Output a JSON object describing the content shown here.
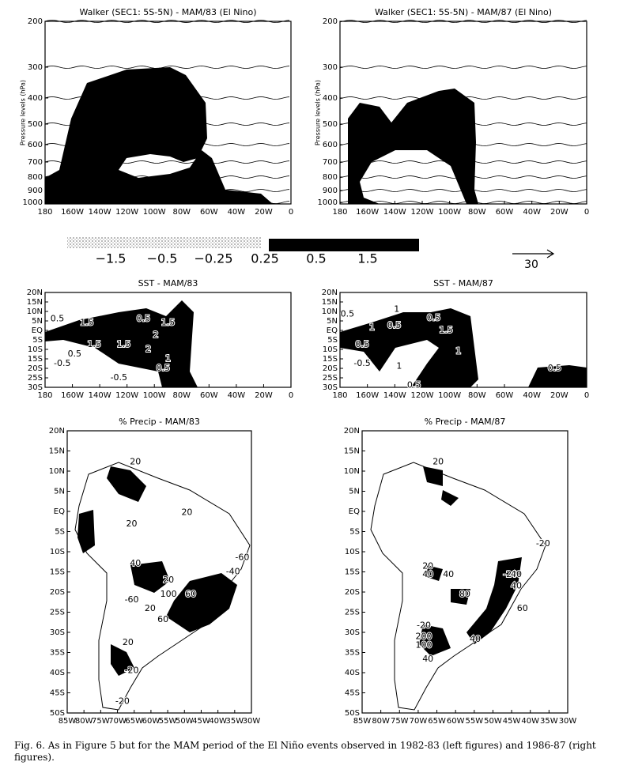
{
  "walker": [
    {
      "title": "Walker (SEC1: 5S-5N) - MAM/83 (El Nino)",
      "y_label": "Pressure levels (hPa)",
      "y_ticks": [
        "200",
        "300",
        "400",
        "500",
        "600",
        "700",
        "800",
        "900",
        "1000"
      ],
      "x_ticks": [
        "180",
        "160W",
        "140W",
        "120W",
        "100W",
        "80W",
        "60W",
        "40W",
        "20W",
        "0"
      ]
    },
    {
      "title": "Walker (SEC1: 5S-5N) - MAM/87 (El Nino)",
      "y_label": "Pressure levels (hPa)",
      "y_ticks": [
        "200",
        "300",
        "400",
        "500",
        "600",
        "700",
        "800",
        "900",
        "1000"
      ],
      "x_ticks": [
        "180",
        "160W",
        "140W",
        "120W",
        "100W",
        "80W",
        "60W",
        "40W",
        "20W",
        "0"
      ]
    }
  ],
  "legend": {
    "labels": [
      "−1.5",
      "−0.5",
      "−0.25",
      "0.25",
      "0.5",
      "1.5"
    ],
    "vector_scale": "30"
  },
  "sst": [
    {
      "title": "SST - MAM/83",
      "y_ticks": [
        "20N",
        "15N",
        "10N",
        "5N",
        "EQ",
        "5S",
        "10S",
        "15S",
        "20S",
        "25S",
        "30S"
      ],
      "x_ticks": [
        "180",
        "160W",
        "140W",
        "120W",
        "100W",
        "80W",
        "60W",
        "40W",
        "20W",
        "0"
      ],
      "contour_labels": [
        "0.5",
        "1.5",
        "0.5",
        "1.5",
        "2",
        "1.5",
        "2",
        "1.5",
        "0.5",
        "-0.5",
        "-0.5",
        "1",
        "0.5"
      ]
    },
    {
      "title": "SST - MAM/87",
      "y_ticks": [
        "20N",
        "15N",
        "10N",
        "5N",
        "EQ",
        "5S",
        "10S",
        "15S",
        "20S",
        "25S",
        "30S"
      ],
      "x_ticks": [
        "180",
        "160W",
        "140W",
        "120W",
        "100W",
        "80W",
        "60W",
        "40W",
        "20W",
        "0"
      ],
      "contour_labels": [
        "0.5",
        "1",
        "0.5",
        "1",
        "0.5",
        "1.5",
        "0.5",
        "1",
        "-0.5",
        "1",
        "0.5",
        "0.5"
      ]
    }
  ],
  "precip": [
    {
      "title": "% Precip - MAM/83",
      "y_ticks": [
        "20N",
        "15N",
        "10N",
        "5N",
        "EQ",
        "5S",
        "10S",
        "15S",
        "20S",
        "25S",
        "30S",
        "35S",
        "40S",
        "45S",
        "50S"
      ],
      "x_ticks": [
        "85W",
        "80W",
        "75W",
        "70W",
        "65W",
        "60W",
        "55W",
        "50W",
        "45W",
        "40W",
        "35W",
        "30W"
      ],
      "contour_labels": [
        "20",
        "20",
        "20",
        "-60",
        "40",
        "-40",
        "20",
        "100",
        "60",
        "-60",
        "20",
        "60",
        "20",
        "-20",
        "-20"
      ]
    },
    {
      "title": "% Precip - MAM/87",
      "y_ticks": [
        "20N",
        "15N",
        "10N",
        "5N",
        "EQ",
        "5S",
        "10S",
        "15S",
        "20S",
        "25S",
        "30S",
        "35S",
        "40S",
        "45S",
        "50S"
      ],
      "x_ticks": [
        "85W",
        "80W",
        "75W",
        "70W",
        "65W",
        "60W",
        "55W",
        "50W",
        "45W",
        "40W",
        "35W",
        "30W"
      ],
      "contour_labels": [
        "20",
        "-20",
        "20",
        "40",
        "40",
        "-20",
        "40",
        "40",
        "80",
        "60",
        "-20",
        "200",
        "100",
        "40",
        "40"
      ]
    }
  ],
  "caption": "Fig. 6. As in Figure 5 but for the MAM period of the El Niño events observed in 1982-83 (left figures) and 1986-87 (right figures)."
}
